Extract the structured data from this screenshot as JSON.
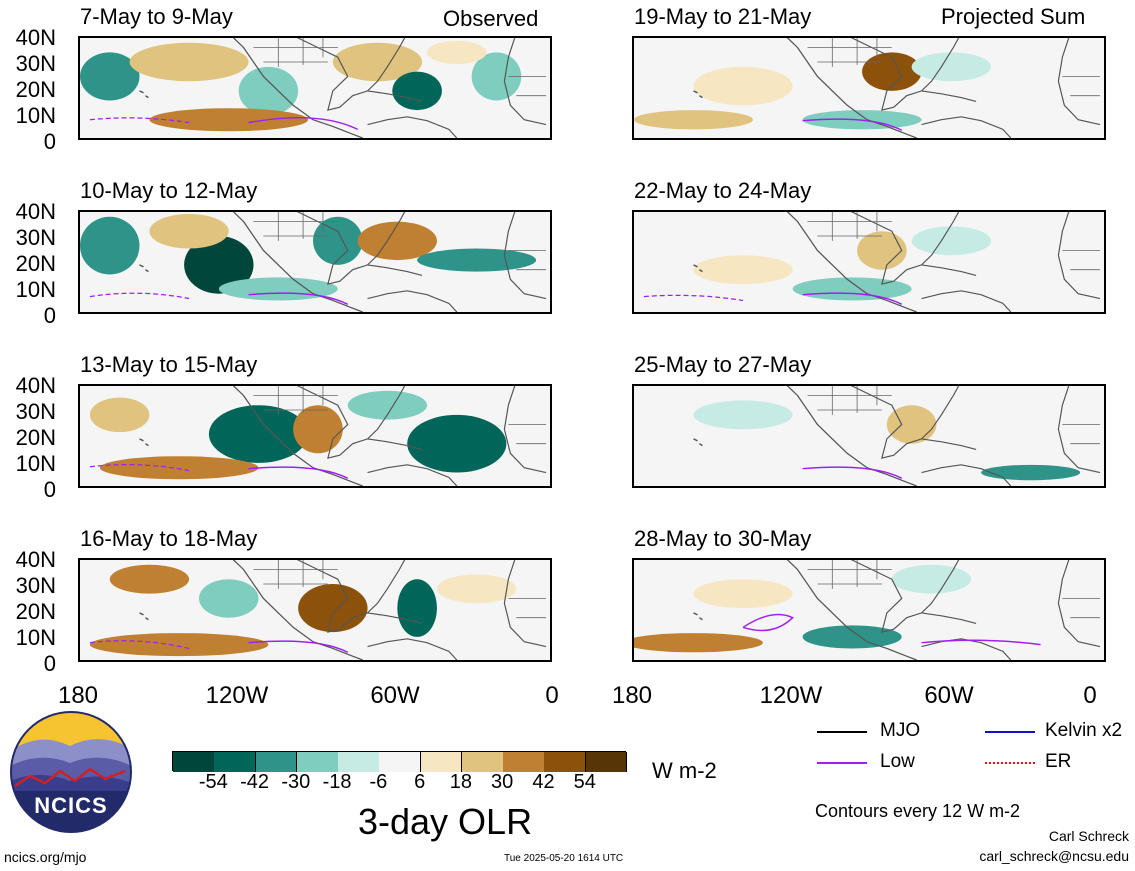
{
  "panel_sections": {
    "left": "Observed",
    "right": "Projected Sum"
  },
  "panels_left": [
    {
      "title": "7-May to 9-May"
    },
    {
      "title": "10-May to 12-May"
    },
    {
      "title": "13-May to 15-May"
    },
    {
      "title": "16-May to 18-May"
    }
  ],
  "panels_right": [
    {
      "title": "19-May to 21-May"
    },
    {
      "title": "22-May to 24-May"
    },
    {
      "title": "25-May to 27-May"
    },
    {
      "title": "28-May to 30-May"
    }
  ],
  "y_ticks": [
    "40N",
    "30N",
    "20N",
    "10N",
    "0"
  ],
  "x_ticks": [
    "180",
    "120W",
    "60W",
    "0"
  ],
  "colorbar": {
    "ticks": [
      "-54",
      "-42",
      "-30",
      "-18",
      "-6",
      "6",
      "18",
      "30",
      "42",
      "54"
    ],
    "colors": [
      "#01463a",
      "#00665a",
      "#2e9489",
      "#7fcdbe",
      "#c6ebe5",
      "#f5f5f5",
      "#f6e7c2",
      "#dfc37f",
      "#c08031",
      "#8c520b",
      "#573507"
    ],
    "unit": "W m-2",
    "title": "3-day OLR"
  },
  "legend": [
    {
      "label": "MJO",
      "color": "#000000"
    },
    {
      "label": "Kelvin x2",
      "color": "#1010c8"
    },
    {
      "label": "Low",
      "color": "#a020f0"
    },
    {
      "label": "ER",
      "color": "#e01010"
    }
  ],
  "contour_note": "Contours every 12 W m-2",
  "logo_text": "NCICS",
  "footer": {
    "url": "ncics.org/mjo",
    "timestamp": "Tue 2025-05-20 1614 UTC",
    "author": "Carl Schreck",
    "email": "carl_schreck@ncsu.edu"
  }
}
